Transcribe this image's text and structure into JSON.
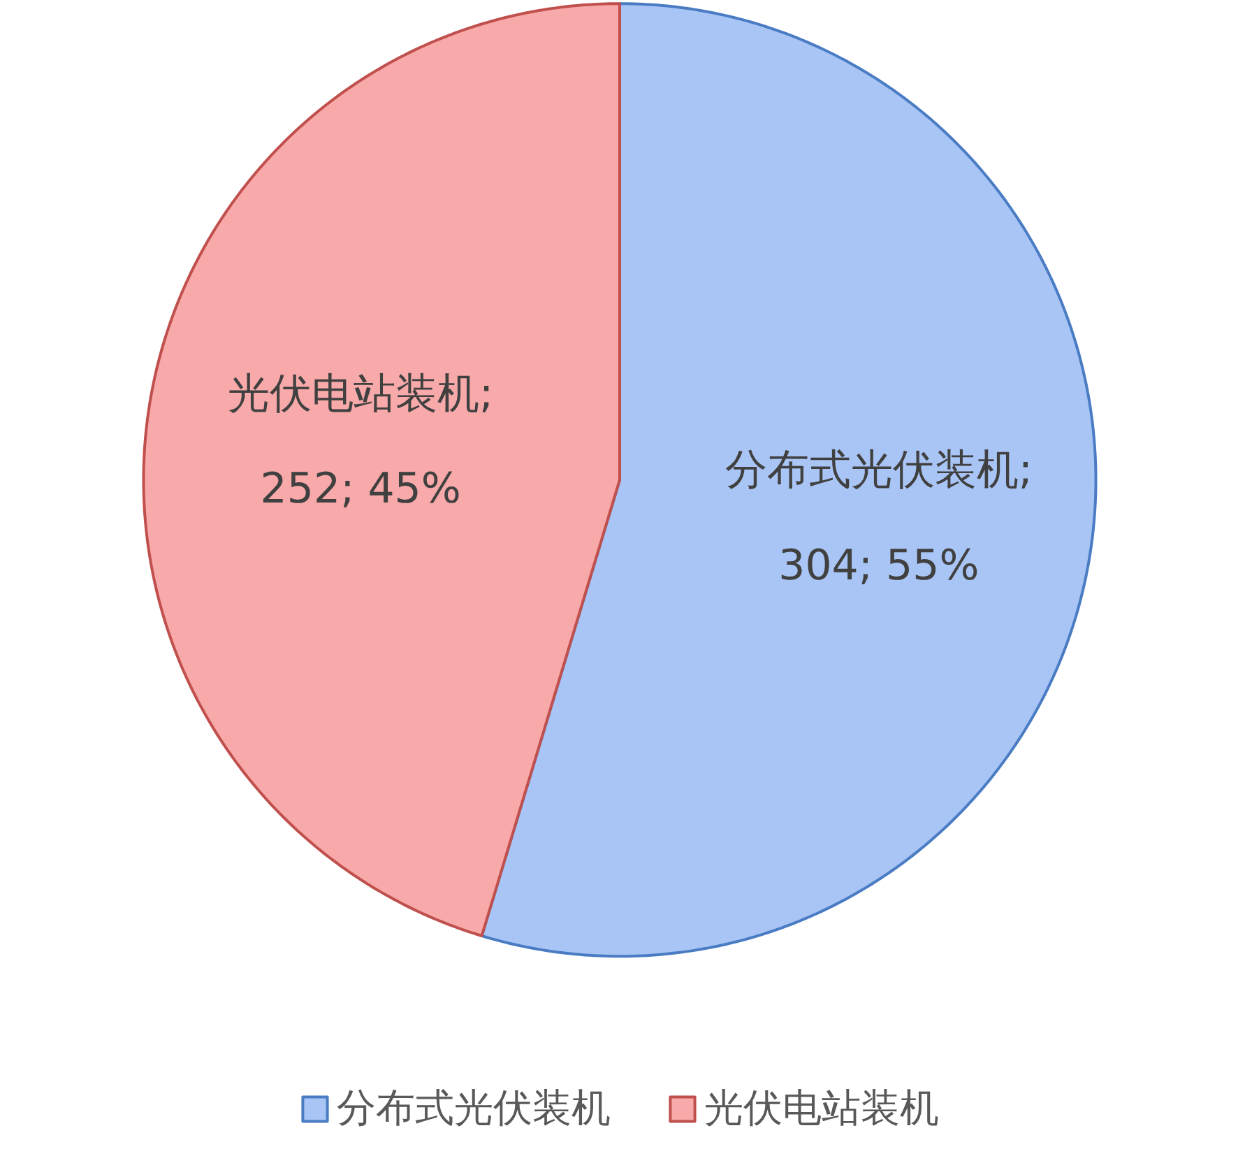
{
  "chart_data": {
    "type": "pie",
    "categories": [
      "分布式光伏装机",
      "光伏电站装机"
    ],
    "values": [
      304,
      252
    ],
    "colors": [
      "#a9c5f5",
      "#f8a9a9"
    ],
    "value_labels": [
      "分布式光伏装机;\n304; 55%",
      "光伏电站装机;\n252; 45%"
    ],
    "legend": "bottom"
  }
}
